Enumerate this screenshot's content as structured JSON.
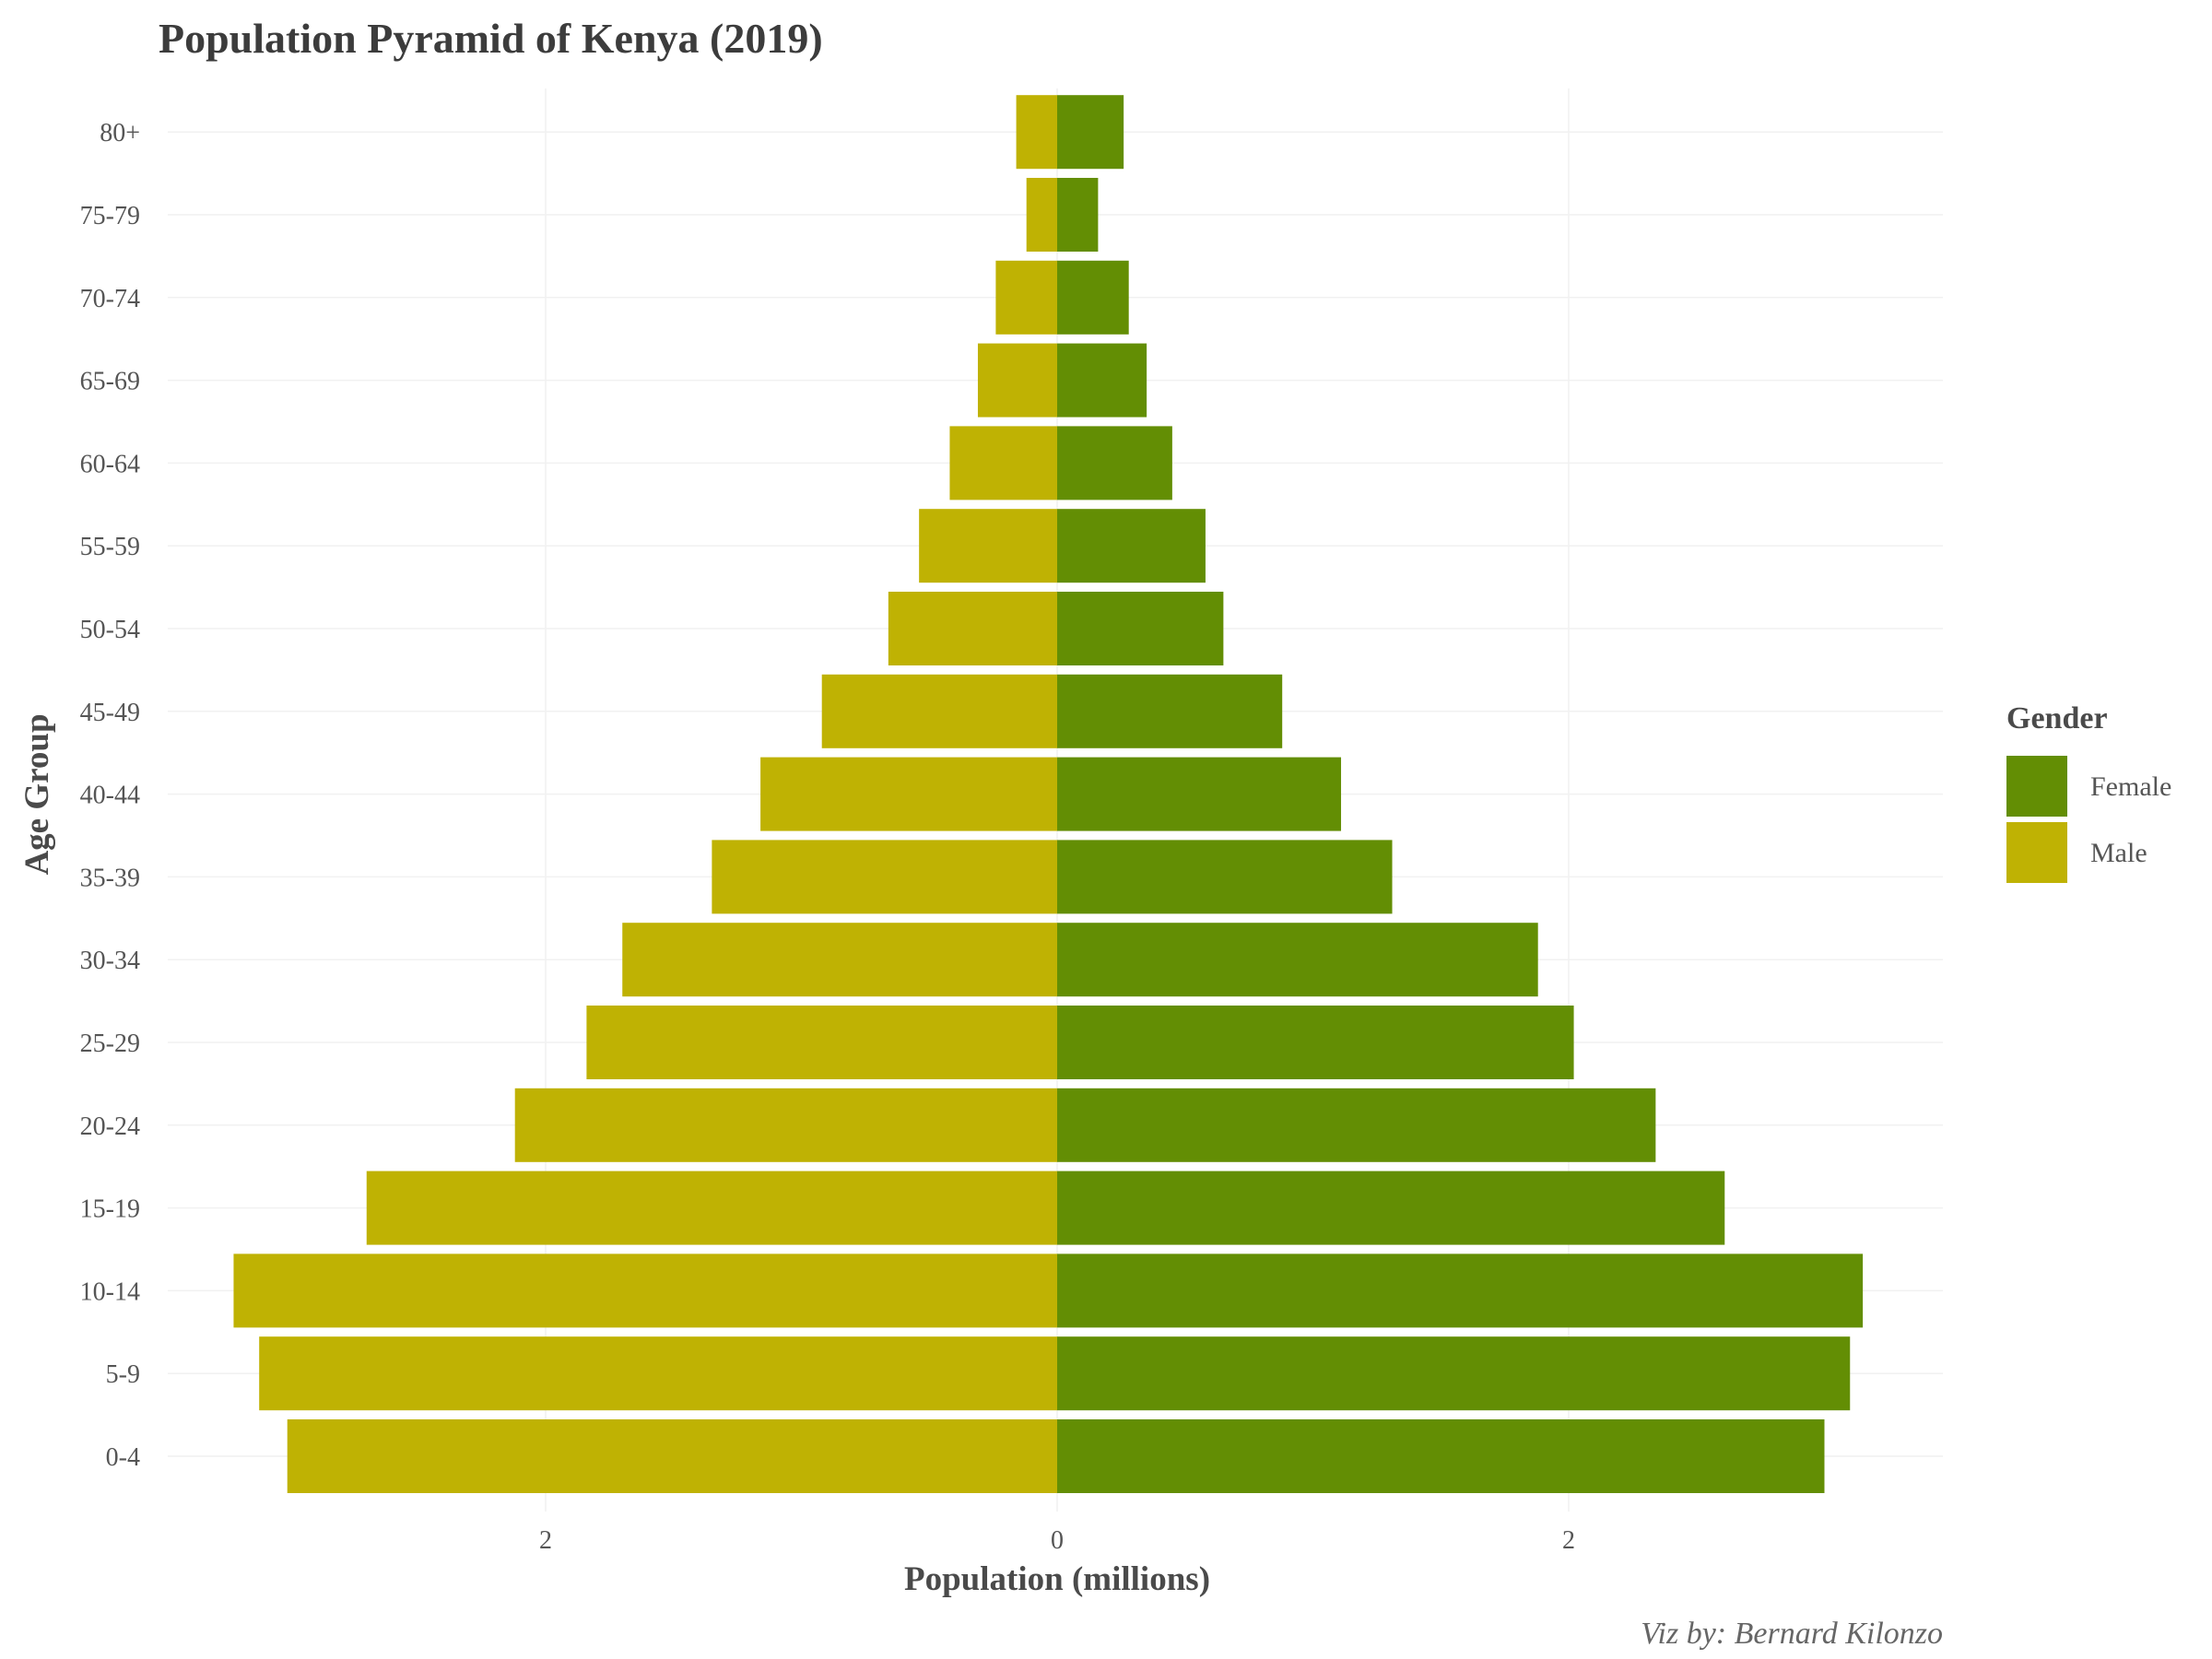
{
  "chart_data": {
    "type": "bar",
    "orientation": "horizontal",
    "title": "Population Pyramid of Kenya (2019)",
    "xlabel": "Population (millions)",
    "ylabel": "Age Group",
    "caption": "Viz by: Bernard Kilonzo",
    "categories": [
      "0-4",
      "5-9",
      "10-14",
      "15-19",
      "20-24",
      "25-29",
      "30-34",
      "35-39",
      "40-44",
      "45-49",
      "50-54",
      "55-59",
      "60-64",
      "65-69",
      "70-74",
      "75-79",
      "80+"
    ],
    "series": [
      {
        "name": "Female",
        "color": "#638e04",
        "values": [
          3.0,
          3.1,
          3.15,
          2.61,
          2.34,
          2.02,
          1.88,
          1.31,
          1.11,
          0.88,
          0.65,
          0.58,
          0.45,
          0.35,
          0.28,
          0.16,
          0.26
        ]
      },
      {
        "name": "Male",
        "color": "#bfb203",
        "values": [
          3.01,
          3.12,
          3.22,
          2.7,
          2.12,
          1.84,
          1.7,
          1.35,
          1.16,
          0.92,
          0.66,
          0.54,
          0.42,
          0.31,
          0.24,
          0.12,
          0.16
        ]
      }
    ],
    "xticks": [
      -2,
      0,
      2
    ],
    "xtick_labels": [
      "2",
      "0",
      "2"
    ],
    "xlim": [
      -3.45,
      3.45
    ],
    "grid": true,
    "legend": {
      "title": "Gender",
      "position": "right"
    }
  }
}
